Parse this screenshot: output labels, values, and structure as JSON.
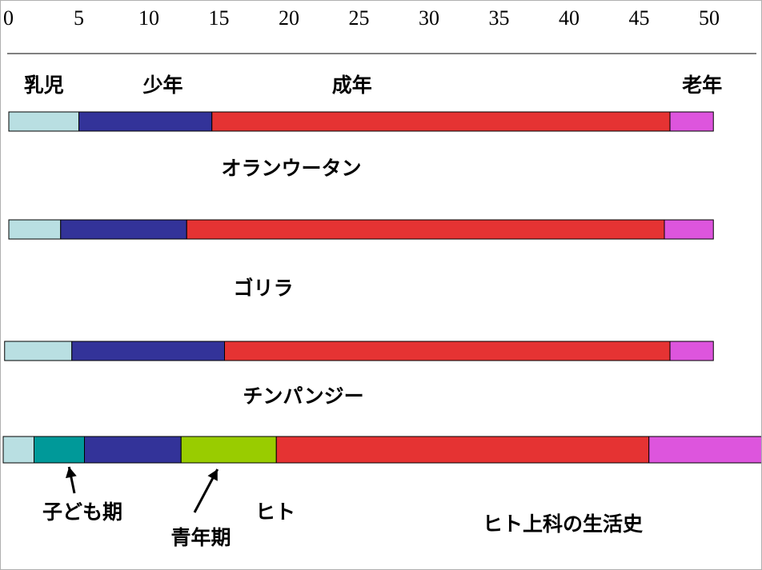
{
  "chart_data": {
    "type": "bar",
    "orientation": "horizontal-stacked",
    "title": "ヒト上科の生活史",
    "xlim": [
      0,
      55
    ],
    "x_ticks": [
      "0",
      "5",
      "10",
      "15",
      "20",
      "25",
      "30",
      "35",
      "40",
      "45",
      "50",
      "55"
    ],
    "stage_labels": [
      {
        "text": "乳児",
        "x": 2.5
      },
      {
        "text": "少年",
        "x": 11
      },
      {
        "text": "成年",
        "x": 24.5
      },
      {
        "text": "老年",
        "x": 49.5
      }
    ],
    "colors": {
      "乳児": "#b9dfe2",
      "子ども期": "#009999",
      "少年": "#333399",
      "青年期": "#99cc00",
      "成年": "#e53333",
      "老年": "#dd55dd"
    },
    "series": [
      {
        "name": "オランウータン",
        "segments": [
          {
            "stage": "乳児",
            "start": 0,
            "end": 5
          },
          {
            "stage": "少年",
            "start": 5,
            "end": 14.5
          },
          {
            "stage": "成年",
            "start": 14.5,
            "end": 47.2
          },
          {
            "stage": "老年",
            "start": 47.2,
            "end": 50.3
          }
        ]
      },
      {
        "name": "ゴリラ",
        "segments": [
          {
            "stage": "乳児",
            "start": 0,
            "end": 3.7
          },
          {
            "stage": "少年",
            "start": 3.7,
            "end": 12.7
          },
          {
            "stage": "成年",
            "start": 12.7,
            "end": 46.8
          },
          {
            "stage": "老年",
            "start": 46.8,
            "end": 50.3
          }
        ]
      },
      {
        "name": "チンパンジー",
        "segments": [
          {
            "stage": "乳児",
            "start": -0.3,
            "end": 4.5
          },
          {
            "stage": "少年",
            "start": 4.5,
            "end": 15.4
          },
          {
            "stage": "成年",
            "start": 15.4,
            "end": 47.2
          },
          {
            "stage": "老年",
            "start": 47.2,
            "end": 50.3
          }
        ]
      },
      {
        "name": "ヒト",
        "segments": [
          {
            "stage": "乳児",
            "start": -0.4,
            "end": 1.8
          },
          {
            "stage": "子ども期",
            "start": 1.8,
            "end": 5.4
          },
          {
            "stage": "少年",
            "start": 5.4,
            "end": 12.3
          },
          {
            "stage": "青年期",
            "start": 12.3,
            "end": 19.1
          },
          {
            "stage": "成年",
            "start": 19.1,
            "end": 45.7
          },
          {
            "stage": "老年",
            "start": 45.7,
            "end": 54.5
          }
        ]
      }
    ],
    "annotations": [
      {
        "text": "子ども期",
        "points_to": 3.9
      },
      {
        "text": "青年期",
        "points_to": 14.5
      }
    ]
  }
}
